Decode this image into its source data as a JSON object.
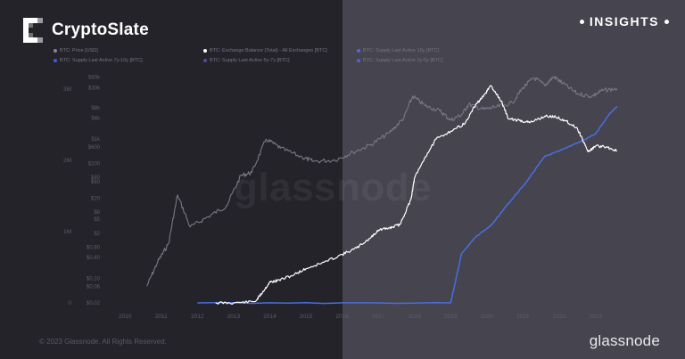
{
  "brand": {
    "name": "CryptoSlate",
    "tag": "INSIGHTS"
  },
  "footer": {
    "copyright": "© 2023 Glassnode. All Rights Reserved.",
    "logo_text": "glassnode"
  },
  "watermark": "glassnode",
  "colors": {
    "price": "#7d7685",
    "exchange_balance": "#ffffff",
    "supply_10y": "#4a6ee0",
    "supply_7y": "#3d5ed4",
    "supply_5y": "#4c4aa8",
    "supply_3y": "#5660d0",
    "axis_text": "#5e5d6a"
  },
  "chart_data": {
    "type": "line",
    "legend": [
      {
        "label": "BTC: Price [USD]",
        "color": "#8a8494"
      },
      {
        "label": "BTC: Exchange Balance (Total) - All Exchanges [BTC]",
        "color": "#ffffff"
      },
      {
        "label": "BTC: Supply Last Active 10y [BTC]",
        "color": "#4a6ee0"
      },
      {
        "label": "BTC: Supply Last Active 7y-10y [BTC]",
        "color": "#3d5ed4"
      },
      {
        "label": "BTC: Supply Last Active 5y-7y [BTC]",
        "color": "#4c4aa8"
      },
      {
        "label": "BTC: Supply Last Active 3y-5y [BTC]",
        "color": "#5660d0"
      }
    ],
    "x_ticks": [
      "2010",
      "2011",
      "2012",
      "2013",
      "2014",
      "2015",
      "2016",
      "2017",
      "2018",
      "2019",
      "2020",
      "2021",
      "2022",
      "2023"
    ],
    "xlim": [
      2009.55,
      2023.8
    ],
    "left_axis_ticks": [
      "0",
      "1M",
      "2M",
      "3M"
    ],
    "left_axis_range": [
      0,
      3200000
    ],
    "price_axis_ticks": [
      "$0.02",
      "$0.06",
      "$0.10",
      "$0.40",
      "$0.80",
      "$2",
      "$5",
      "$8",
      "$20",
      "$60",
      "$80",
      "$200",
      "$600",
      "$1k",
      "$4k",
      "$8k",
      "$30k",
      "$60k"
    ],
    "price_axis_scale": "log",
    "price_axis_range": [
      0.02,
      70000
    ],
    "series": [
      {
        "name": "BTC: Exchange Balance (Total) - All Exchanges [BTC]",
        "axis": "left",
        "x": [
          2012.5,
          2013.0,
          2013.6,
          2013.8,
          2014.0,
          2014.2,
          2014.6,
          2015.0,
          2015.5,
          2016.0,
          2016.4,
          2016.8,
          2017.0,
          2017.3,
          2017.6,
          2017.9,
          2018.0,
          2018.3,
          2018.6,
          2019.0,
          2019.4,
          2019.7,
          2019.9,
          2020.1,
          2020.4,
          2020.6,
          2020.9,
          2021.2,
          2021.6,
          2021.9,
          2022.2,
          2022.5,
          2022.8,
          2023.0,
          2023.3,
          2023.6
        ],
        "y": [
          0,
          0,
          20000,
          150000,
          290000,
          310000,
          380000,
          480000,
          570000,
          680000,
          770000,
          920000,
          1020000,
          1050000,
          1100000,
          1450000,
          1750000,
          2050000,
          2300000,
          2410000,
          2520000,
          2790000,
          2890000,
          3050000,
          2830000,
          2580000,
          2560000,
          2530000,
          2620000,
          2610000,
          2550000,
          2450000,
          2120000,
          2200000,
          2190000,
          2130000
        ]
      },
      {
        "name": "BTC: Supply Last Active 10y [BTC]",
        "axis": "left",
        "x": [
          2012.0,
          2019.0,
          2019.3,
          2019.7,
          2020.1,
          2020.4,
          2020.8,
          2021.1,
          2021.4,
          2021.6,
          2022.0,
          2022.5,
          2023.0,
          2023.4,
          2023.6
        ],
        "y": [
          0,
          0,
          690000,
          930000,
          1080000,
          1270000,
          1520000,
          1700000,
          1920000,
          2060000,
          2130000,
          2240000,
          2370000,
          2660000,
          2760000
        ]
      },
      {
        "name": "BTC: Price [USD]",
        "axis": "price",
        "x": [
          2010.6,
          2010.9,
          2011.2,
          2011.45,
          2011.8,
          2012.3,
          2012.8,
          2013.2,
          2013.5,
          2013.9,
          2014.3,
          2014.9,
          2015.2,
          2015.8,
          2016.3,
          2016.8,
          2017.3,
          2017.7,
          2017.95,
          2018.3,
          2018.7,
          2019.0,
          2019.3,
          2019.5,
          2019.9,
          2020.2,
          2020.7,
          2021.0,
          2021.3,
          2021.6,
          2021.85,
          2022.1,
          2022.5,
          2022.9,
          2023.2,
          2023.6
        ],
        "y": [
          0.06,
          0.3,
          1,
          25,
          3,
          6,
          12,
          90,
          110,
          1000,
          550,
          300,
          230,
          250,
          420,
          700,
          1500,
          4000,
          17000,
          9000,
          6500,
          3500,
          5000,
          10000,
          7200,
          8000,
          11000,
          30000,
          58000,
          35000,
          62000,
          40000,
          20000,
          17000,
          25000,
          28000
        ]
      }
    ]
  }
}
